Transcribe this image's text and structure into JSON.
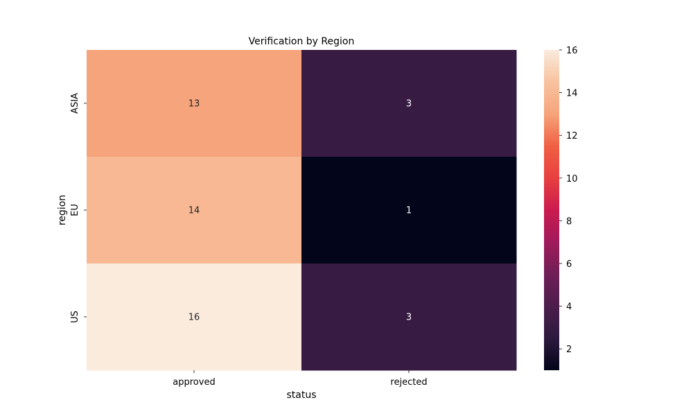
{
  "chart_data": {
    "type": "heatmap",
    "title": "Verification by Region",
    "xlabel": "status",
    "ylabel": "region",
    "x_categories": [
      "approved",
      "rejected"
    ],
    "y_categories": [
      "ASIA",
      "EU",
      "US"
    ],
    "values": [
      [
        13,
        3
      ],
      [
        14,
        1
      ],
      [
        16,
        3
      ]
    ],
    "colorbar": {
      "min": 1,
      "max": 16,
      "ticks": [
        2,
        4,
        6,
        8,
        10,
        12,
        14,
        16
      ]
    },
    "colormap": [
      "#03051a",
      "#2d1a3f",
      "#4c1d4b",
      "#701f57",
      "#a11a5b",
      "#cb1b4f",
      "#e83f3f",
      "#f06043",
      "#f6a47b",
      "#f8c29f",
      "#faebdd"
    ],
    "annotation_colors": {
      "light": "#ffffff",
      "dark": "#262626"
    },
    "grid": false
  }
}
